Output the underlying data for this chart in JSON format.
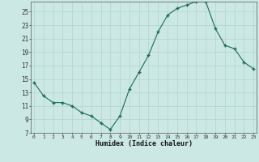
{
  "x": [
    0,
    1,
    2,
    3,
    4,
    5,
    6,
    7,
    8,
    9,
    10,
    11,
    12,
    13,
    14,
    15,
    16,
    17,
    18,
    19,
    20,
    21,
    22,
    23
  ],
  "y": [
    14.5,
    12.5,
    11.5,
    11.5,
    11.0,
    10.0,
    9.5,
    8.5,
    7.5,
    9.5,
    13.5,
    16.0,
    18.5,
    22.0,
    24.5,
    25.5,
    26.0,
    26.5,
    26.5,
    22.5,
    20.0,
    19.5,
    17.5,
    16.5
  ],
  "xlabel": "Humidex (Indice chaleur)",
  "bg_color": "#cce8e4",
  "line_color": "#1a6b5a",
  "marker_color": "#1a6b5a",
  "grid_color": "#b0d4ce",
  "ylim": [
    7,
    26.5
  ],
  "xlim": [
    -0.3,
    23.3
  ],
  "yticks": [
    7,
    9,
    11,
    13,
    15,
    17,
    19,
    21,
    23,
    25
  ],
  "xticks": [
    0,
    1,
    2,
    3,
    4,
    5,
    6,
    7,
    8,
    9,
    10,
    11,
    12,
    13,
    14,
    15,
    16,
    17,
    18,
    19,
    20,
    21,
    22,
    23
  ]
}
